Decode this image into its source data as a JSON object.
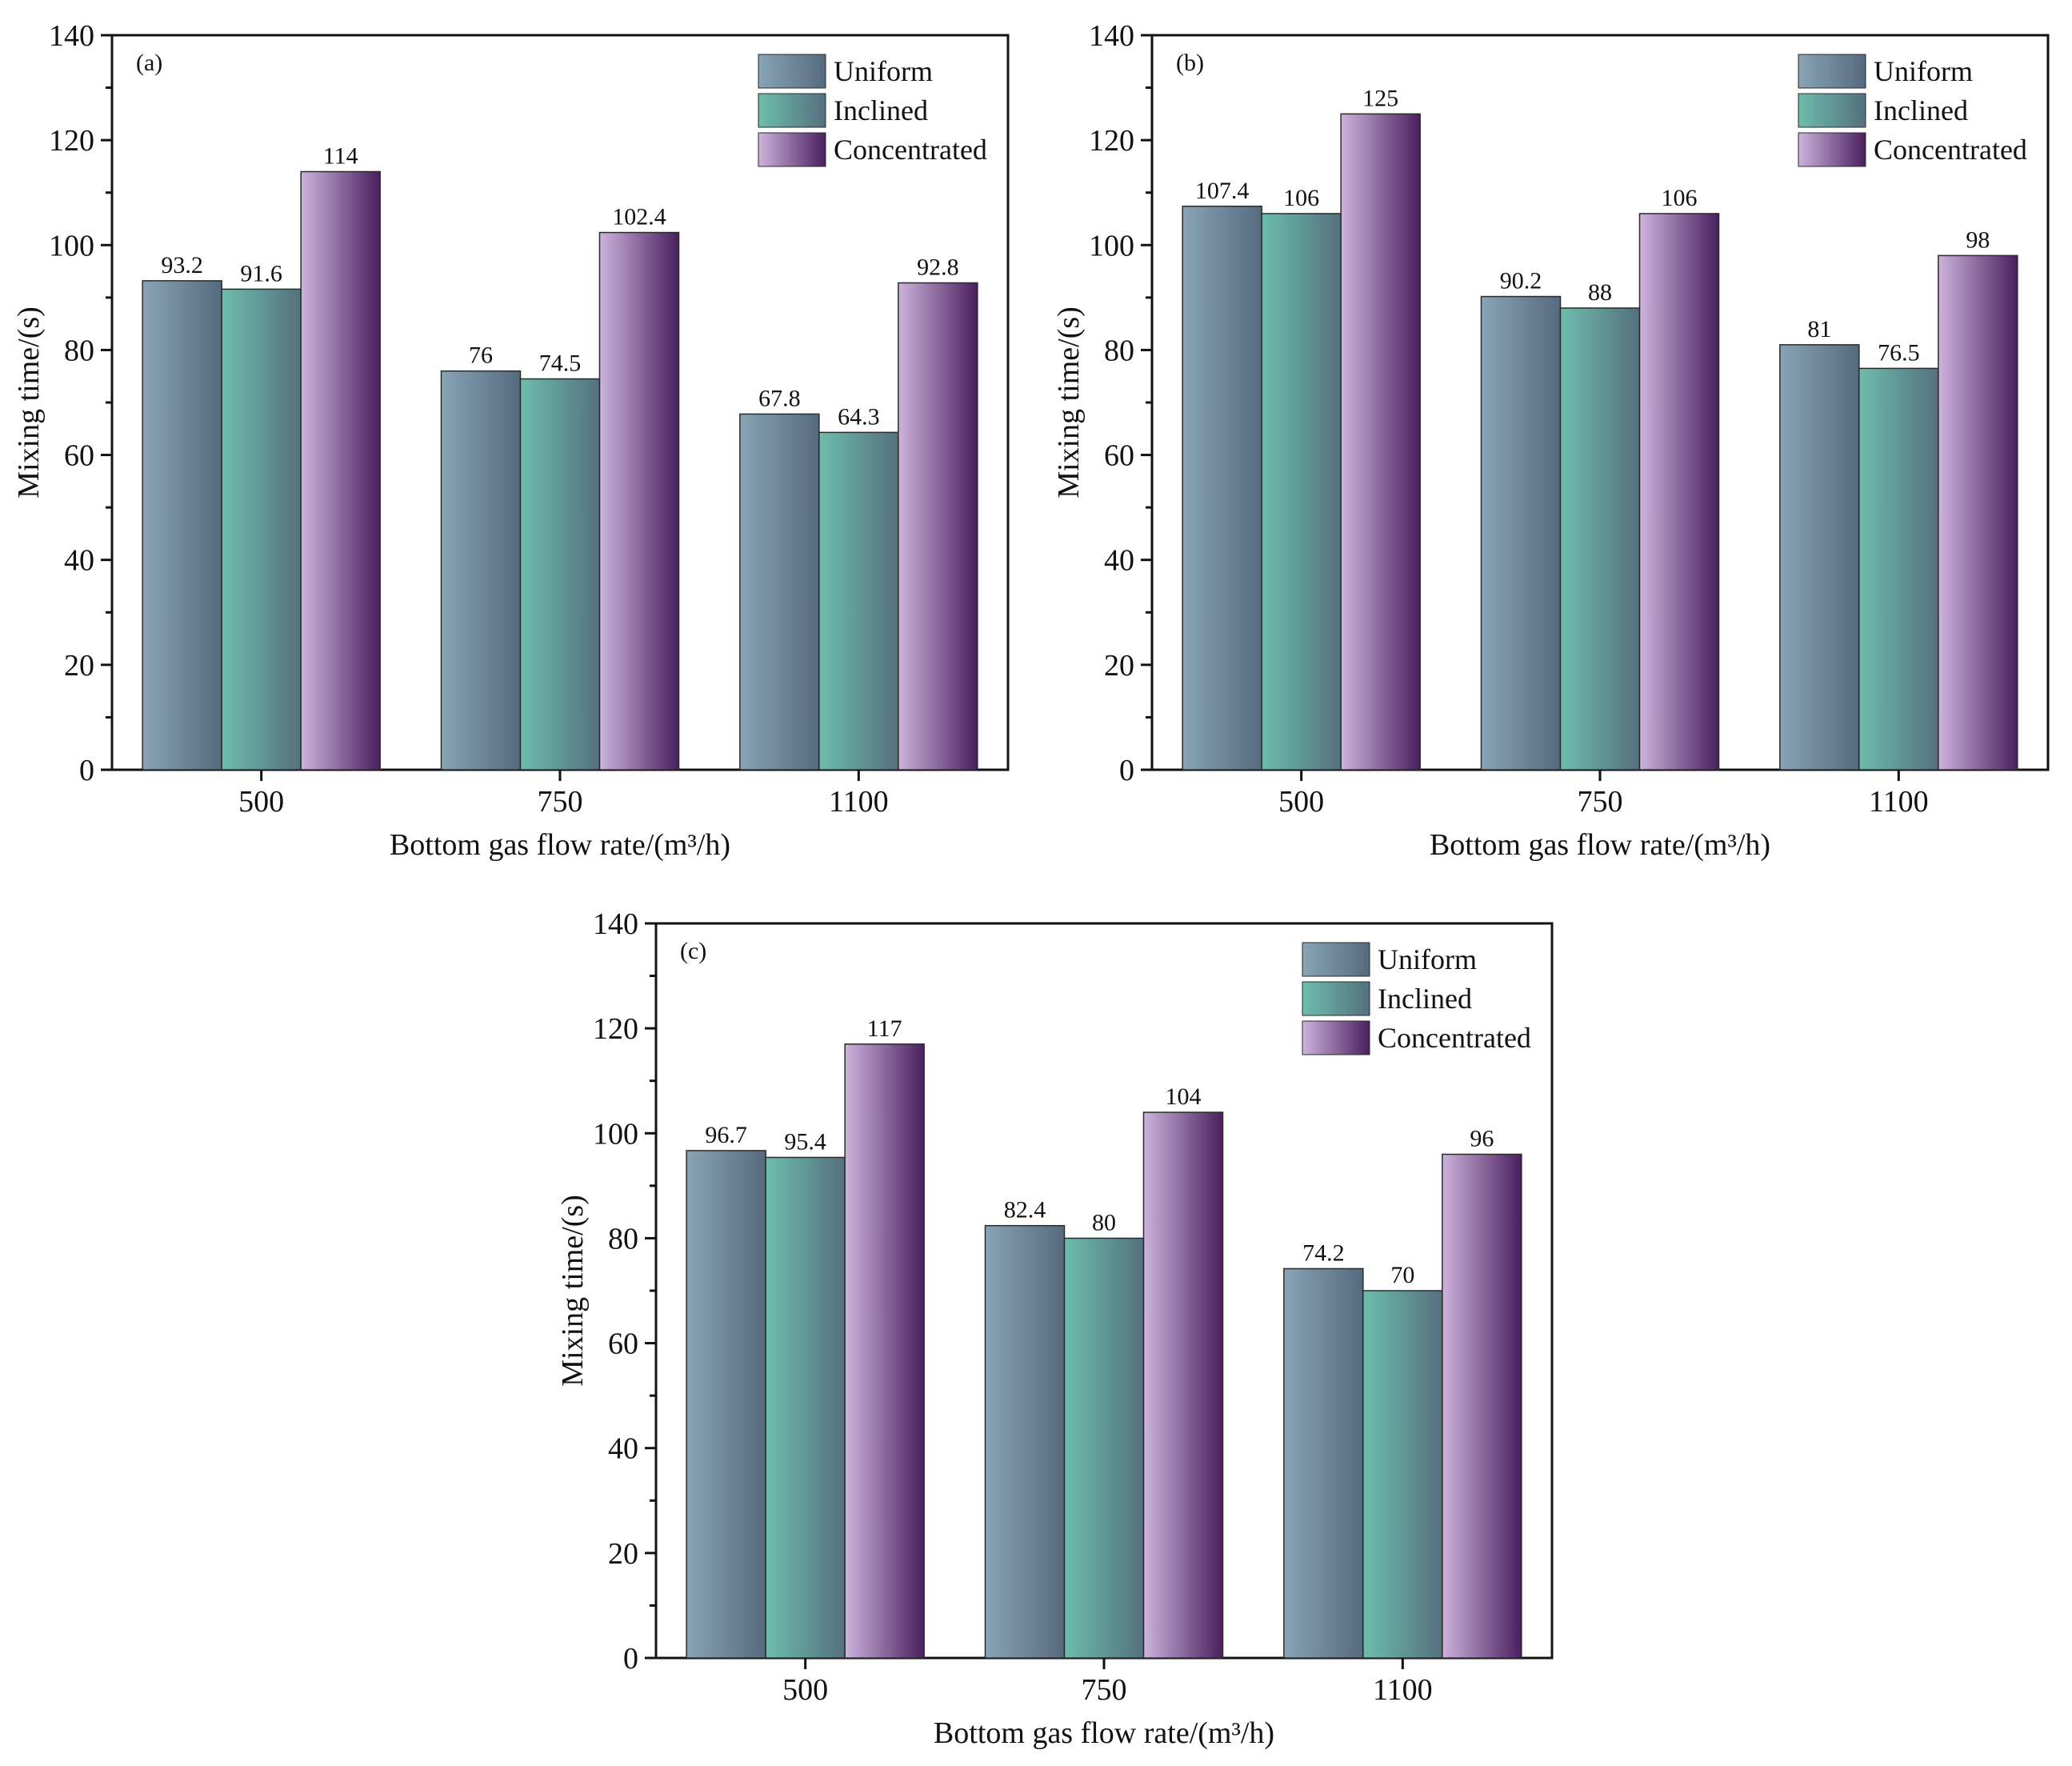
{
  "colors": {
    "uniform": [
      "#88a4b6",
      "#566a7e"
    ],
    "inclined": [
      "#6dbdac",
      "#55707f"
    ],
    "concentrated": [
      "#cdb3dc",
      "#4a1f5e"
    ]
  },
  "chart_data": [
    {
      "type": "bar",
      "panel": "(a)",
      "categories": [
        "500",
        "750",
        "1100"
      ],
      "series": [
        {
          "name": "Uniform",
          "values": [
            93.2,
            76,
            67.8
          ],
          "labels": [
            "93.2",
            "76",
            "67.8"
          ]
        },
        {
          "name": "Inclined",
          "values": [
            91.6,
            74.5,
            64.3
          ],
          "labels": [
            "91.6",
            "74.5",
            "64.3"
          ]
        },
        {
          "name": "Concentrated",
          "values": [
            114,
            102.4,
            92.8
          ],
          "labels": [
            "114",
            "102.4",
            "92.8"
          ]
        }
      ],
      "xlabel": "Bottom gas flow rate/(m³/h)",
      "ylabel": "Mixing time/(s)",
      "ylim": [
        0,
        140
      ],
      "yticks": [
        "0",
        "20",
        "40",
        "60",
        "80",
        "100",
        "120",
        "140"
      ],
      "legend": "top-right",
      "grid": false
    },
    {
      "type": "bar",
      "panel": "(b)",
      "categories": [
        "500",
        "750",
        "1100"
      ],
      "series": [
        {
          "name": "Uniform",
          "values": [
            107.4,
            90.2,
            81
          ],
          "labels": [
            "107.4",
            "90.2",
            "81"
          ]
        },
        {
          "name": "Inclined",
          "values": [
            106,
            88,
            76.5
          ],
          "labels": [
            "106",
            "88",
            "76.5"
          ]
        },
        {
          "name": "Concentrated",
          "values": [
            125,
            106,
            98
          ],
          "labels": [
            "125",
            "106",
            "98"
          ]
        }
      ],
      "xlabel": "Bottom gas flow rate/(m³/h)",
      "ylabel": "Mixing time/(s)",
      "ylim": [
        0,
        140
      ],
      "yticks": [
        "0",
        "20",
        "40",
        "60",
        "80",
        "100",
        "120",
        "140"
      ],
      "legend": "top-right",
      "grid": false
    },
    {
      "type": "bar",
      "panel": "(c)",
      "categories": [
        "500",
        "750",
        "1100"
      ],
      "series": [
        {
          "name": "Uniform",
          "values": [
            96.7,
            82.4,
            74.2
          ],
          "labels": [
            "96.7",
            "82.4",
            "74.2"
          ]
        },
        {
          "name": "Inclined",
          "values": [
            95.4,
            80,
            70
          ],
          "labels": [
            "95.4",
            "80",
            "70"
          ]
        },
        {
          "name": "Concentrated",
          "values": [
            117,
            104,
            96
          ],
          "labels": [
            "117",
            "104",
            "96"
          ]
        }
      ],
      "xlabel": "Bottom gas flow rate/(m³/h)",
      "ylabel": "Mixing time/(s)",
      "ylim": [
        0,
        140
      ],
      "yticks": [
        "0",
        "20",
        "40",
        "60",
        "80",
        "100",
        "120",
        "140"
      ],
      "legend": "top-right",
      "grid": false
    }
  ]
}
